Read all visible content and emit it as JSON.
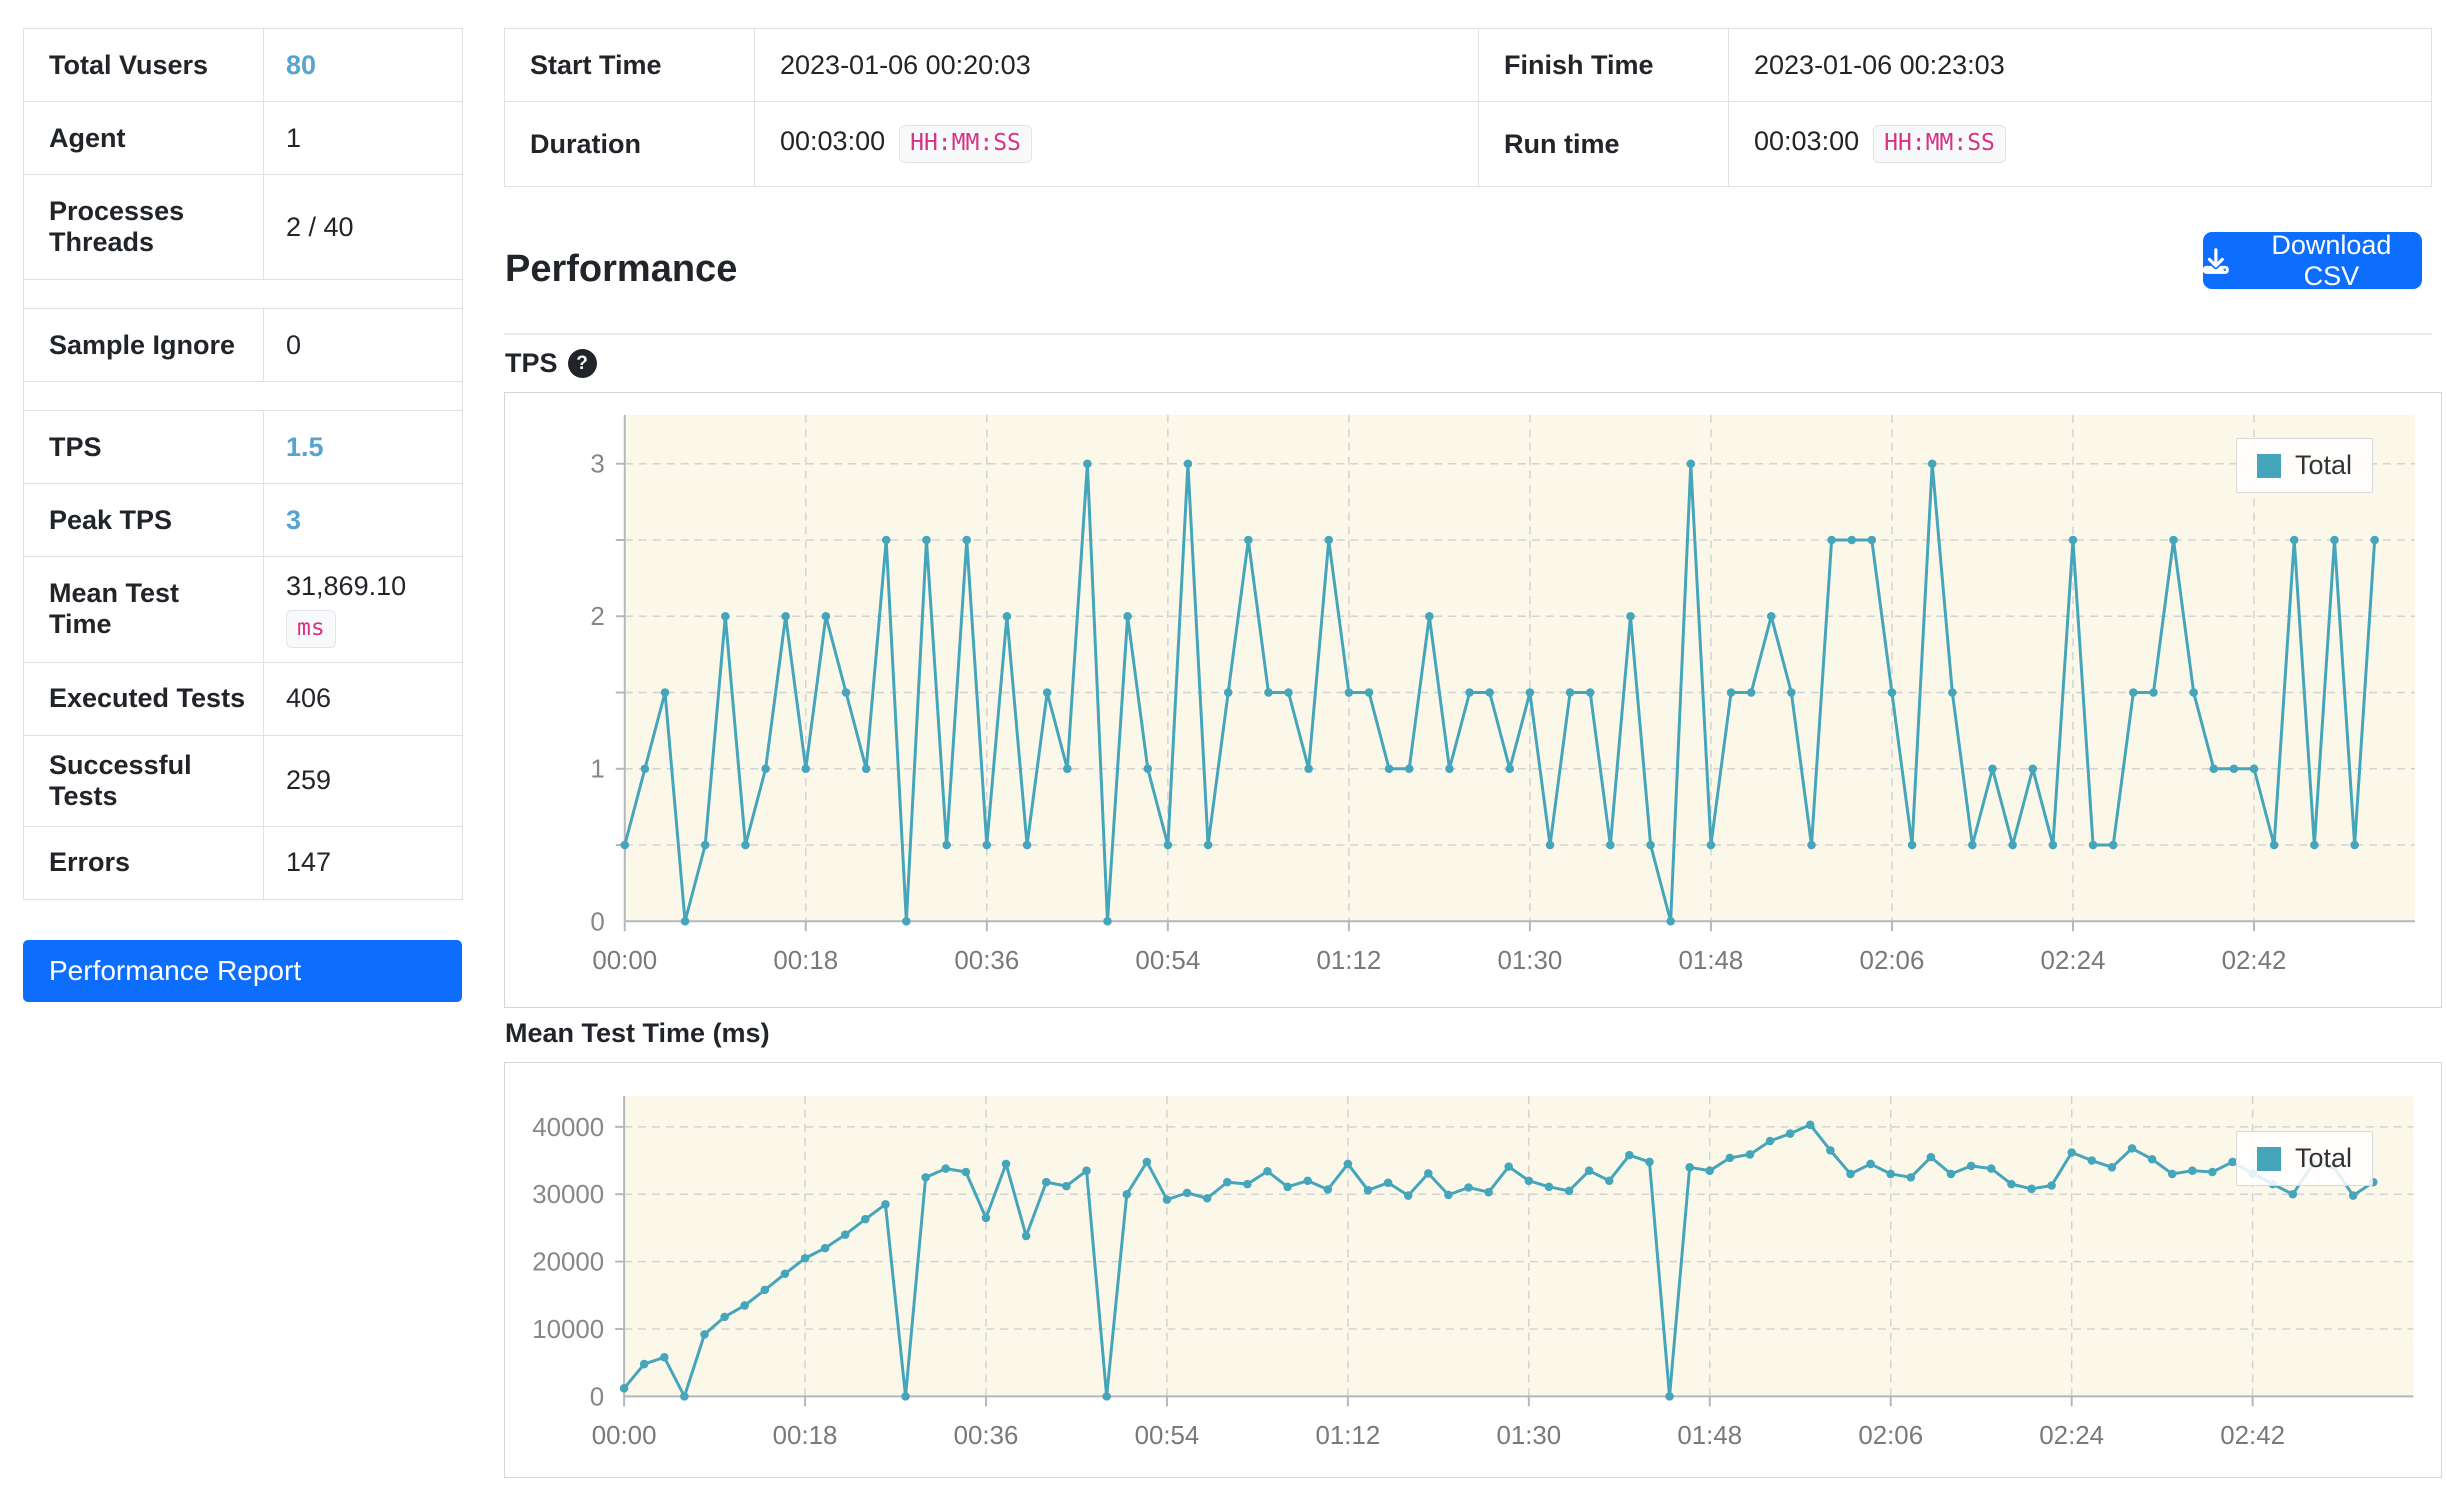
{
  "sidebar": {
    "rows": [
      {
        "label": "Total Vusers",
        "value": "80",
        "highlight": true
      },
      {
        "label": "Agent",
        "value": "1"
      },
      {
        "label": "Processes\nThreads",
        "value": "2 / 40",
        "tall": true
      },
      {
        "spacer": true
      },
      {
        "label": "Sample Ignore",
        "value": "0"
      },
      {
        "spacer": true
      },
      {
        "label": "TPS",
        "value": "1.5",
        "highlight": true
      },
      {
        "label": "Peak TPS",
        "value": "3",
        "highlight": true
      },
      {
        "label": "Mean Test Time",
        "value": "31,869.10",
        "badge": "ms",
        "badge_block": true
      },
      {
        "label": "Executed Tests",
        "value": "406"
      },
      {
        "label": "Successful Tests",
        "value": "259"
      },
      {
        "label": "Errors",
        "value": "147"
      }
    ],
    "report_button": "Performance Report"
  },
  "summary": {
    "rows": [
      [
        {
          "label": "Start Time",
          "value": "2023-01-06 00:20:03"
        },
        {
          "label": "Finish Time",
          "value": "2023-01-06 00:23:03"
        }
      ],
      [
        {
          "label": "Duration",
          "value": "00:03:00",
          "badge": "HH:MM:SS"
        },
        {
          "label": "Run time",
          "value": "00:03:00",
          "badge": "HH:MM:SS"
        }
      ]
    ]
  },
  "performance_section": {
    "title": "Performance",
    "download_label": "Download CSV",
    "tps_title": "TPS",
    "tps_help": "?",
    "mtt_title": "Mean Test Time (ms)",
    "legend_label": "Total"
  },
  "colors": {
    "accent_blue": "#0d6efd",
    "value_blue": "#58a4d1",
    "badge_pink": "#d63384",
    "chart_line": "#45a5ba",
    "chart_bg": "#fbf8ea"
  },
  "chart_data": [
    {
      "type": "line",
      "title": "TPS",
      "legend": [
        "Total"
      ],
      "legend_position": "top-right",
      "grid": "dashed",
      "line_color": "#45a5ba",
      "bg_color": "#fbf8ea",
      "sample_interval_seconds": 2,
      "x_tick_labels": [
        "00:00",
        "00:18",
        "00:36",
        "00:54",
        "01:12",
        "01:30",
        "01:48",
        "02:06",
        "02:24",
        "02:42"
      ],
      "x_tick_seconds": [
        0,
        18,
        36,
        54,
        72,
        90,
        108,
        126,
        144,
        162
      ],
      "y_tick_labels": [
        "0",
        "1",
        "2",
        "3"
      ],
      "y_tick_values": [
        0,
        1,
        2,
        3
      ],
      "y_grid_step": 0.5,
      "ylim": [
        0,
        3.32
      ],
      "series": [
        {
          "name": "Total",
          "values": [
            0.5,
            1,
            1.5,
            0,
            0.5,
            2,
            0.5,
            1,
            2,
            1,
            2,
            1.5,
            1,
            2.5,
            0,
            2.5,
            0.5,
            2.5,
            0.5,
            2,
            0.5,
            1.5,
            1,
            3,
            0,
            2,
            1,
            0.5,
            3,
            0.5,
            1.5,
            2.5,
            1.5,
            1.5,
            1,
            2.5,
            1.5,
            1.5,
            1,
            1,
            2,
            1,
            1.5,
            1.5,
            1,
            1.5,
            0.5,
            1.5,
            1.5,
            0.5,
            2,
            0.5,
            0,
            3,
            0.5,
            1.5,
            1.5,
            2,
            1.5,
            0.5,
            2.5,
            2.5,
            2.5,
            1.5,
            0.5,
            3,
            1.5,
            0.5,
            1,
            0.5,
            1,
            0.5,
            2.5,
            0.5,
            0.5,
            1.5,
            1.5,
            2.5,
            1.5,
            1,
            1,
            1,
            0.5,
            2.5,
            0.5,
            2.5,
            0.5,
            2.5
          ]
        }
      ]
    },
    {
      "type": "line",
      "title": "Mean Test Time (ms)",
      "legend": [
        "Total"
      ],
      "legend_position": "top-right",
      "grid": "dashed",
      "line_color": "#45a5ba",
      "bg_color": "#fbf8ea",
      "sample_interval_seconds": 2,
      "x_tick_labels": [
        "00:00",
        "00:18",
        "00:36",
        "00:54",
        "01:12",
        "01:30",
        "01:48",
        "02:06",
        "02:24",
        "02:42"
      ],
      "x_tick_seconds": [
        0,
        18,
        36,
        54,
        72,
        90,
        108,
        126,
        144,
        162
      ],
      "y_tick_labels": [
        "0",
        "10000",
        "20000",
        "30000",
        "40000"
      ],
      "y_tick_values": [
        0,
        10000,
        20000,
        30000,
        40000
      ],
      "y_grid_step": 10000,
      "ylim": [
        0,
        44600
      ],
      "series": [
        {
          "name": "Total",
          "values": [
            1200,
            4800,
            5800,
            0,
            9200,
            11800,
            13500,
            15800,
            18200,
            20500,
            22000,
            24000,
            26300,
            28500,
            0,
            32500,
            33800,
            33300,
            26500,
            34500,
            23800,
            31800,
            31200,
            33500,
            0,
            30000,
            34800,
            29200,
            30200,
            29400,
            31800,
            31500,
            33400,
            31100,
            32000,
            30700,
            34500,
            30600,
            31700,
            29800,
            33100,
            29900,
            31000,
            30300,
            34100,
            32000,
            31100,
            30500,
            33500,
            32000,
            35800,
            34800,
            0,
            34000,
            33500,
            35400,
            35900,
            37900,
            39000,
            40300,
            36500,
            33000,
            34500,
            33000,
            32500,
            35500,
            33000,
            34200,
            33800,
            31500,
            30800,
            31300,
            36200,
            35000,
            34000,
            36800,
            35200,
            33000,
            33500,
            33300,
            34800,
            33100,
            31500,
            30000,
            34500,
            34200,
            29800,
            31800
          ]
        }
      ]
    }
  ]
}
